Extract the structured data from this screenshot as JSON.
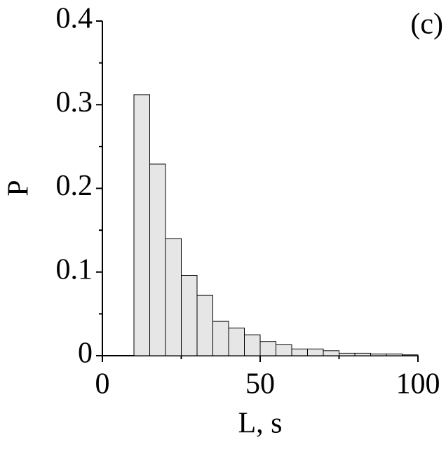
{
  "chart_data": {
    "type": "histogram",
    "annotation": "(c)",
    "xlabel": "L, s",
    "ylabel": "P",
    "bins": [
      10,
      15,
      20,
      25,
      30,
      35,
      40,
      45,
      50,
      55,
      60,
      65,
      70,
      75,
      80,
      85,
      90,
      95,
      100
    ],
    "values": [
      0.312,
      0.229,
      0.14,
      0.096,
      0.072,
      0.041,
      0.033,
      0.025,
      0.017,
      0.013,
      0.008,
      0.008,
      0.006,
      0.003,
      0.003,
      0.002,
      0.002,
      0.001
    ],
    "color": "#e6e6e6",
    "xlim": [
      0,
      100
    ],
    "xticks": [
      0,
      50,
      100
    ],
    "xminorticks": [
      25,
      75
    ],
    "ylim": [
      0,
      0.4
    ],
    "yticks": [
      0,
      0.1,
      0.2,
      0.3,
      0.4
    ],
    "yminorticks": [
      0.05,
      0.15,
      0.25,
      0.35
    ],
    "grid": false
  }
}
